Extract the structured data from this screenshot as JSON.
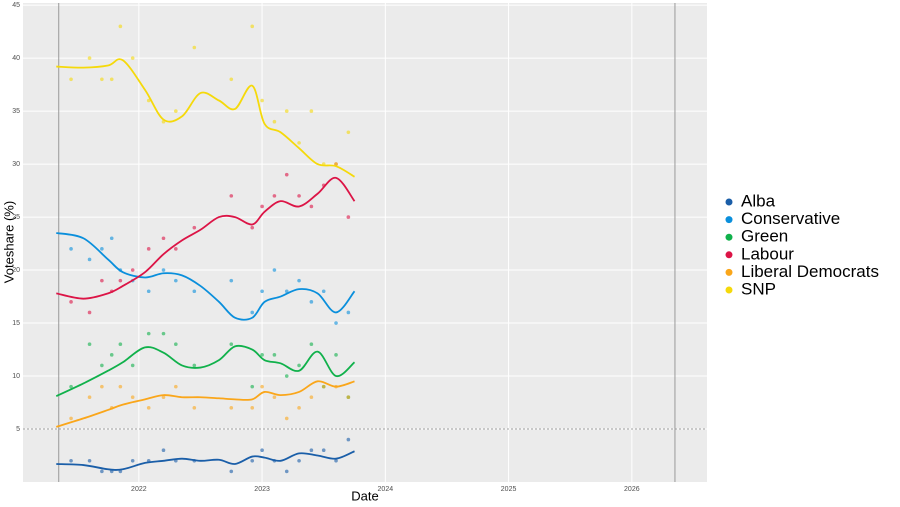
{
  "chart_data": {
    "type": "line",
    "x_label": "Date",
    "y_label": "Voteshare (%)",
    "xlim": [
      2021.06,
      2026.61
    ],
    "ylim": [
      0,
      45.2
    ],
    "xticks": [
      2022,
      2023,
      2024,
      2025,
      2026
    ],
    "yticks": [
      5,
      10,
      15,
      20,
      25,
      30,
      35,
      40,
      45
    ],
    "grid": true,
    "legend": "right",
    "reference_x": [
      2021.35,
      2026.35
    ],
    "reference_y": [
      5
    ],
    "trend_x": [
      2021.33,
      2021.55,
      2021.75,
      2021.87,
      2022.05,
      2022.2,
      2022.35,
      2022.5,
      2022.65,
      2022.78,
      2022.92,
      2023.02,
      2023.15,
      2023.3,
      2023.45,
      2023.6,
      2023.75
    ],
    "poll_x": [
      2021.45,
      2021.6,
      2021.7,
      2021.78,
      2021.85,
      2021.95,
      2022.08,
      2022.2,
      2022.3,
      2022.45,
      2022.75,
      2022.92,
      2023.0,
      2023.1,
      2023.2,
      2023.3,
      2023.4,
      2023.5,
      2023.6,
      2023.7
    ],
    "series": [
      {
        "name": "Alba",
        "color": "#1a5ea8",
        "trend": [
          1.7,
          1.6,
          1.2,
          1.2,
          1.8,
          2.0,
          2.2,
          2.0,
          2.1,
          1.7,
          2.4,
          2.3,
          2.0,
          2.7,
          2.5,
          2.2,
          2.9
        ],
        "polls": [
          2,
          2,
          1,
          1,
          1,
          2,
          2,
          3,
          2,
          2,
          1,
          2,
          3,
          2,
          1,
          2,
          3,
          3,
          2,
          4
        ]
      },
      {
        "name": "Conservative",
        "color": "#0a8fdc",
        "trend": [
          23.5,
          23.0,
          21.0,
          19.8,
          19.3,
          19.7,
          19.5,
          18.5,
          17.0,
          15.5,
          15.5,
          17.0,
          17.5,
          18.2,
          17.8,
          16.0,
          18.0
        ],
        "polls": [
          22,
          21,
          22,
          23,
          20,
          19,
          18,
          20,
          19,
          18,
          19,
          16,
          18,
          20,
          18,
          19,
          17,
          18,
          15,
          16
        ]
      },
      {
        "name": "Green",
        "color": "#10b14b",
        "trend": [
          8.1,
          9.3,
          10.5,
          11.3,
          12.7,
          12.2,
          11.0,
          10.8,
          11.5,
          12.8,
          12.5,
          11.5,
          11.2,
          10.5,
          12.3,
          10.0,
          11.3
        ],
        "polls": [
          9,
          13,
          11,
          12,
          13,
          11,
          14,
          14,
          13,
          11,
          13,
          9,
          12,
          12,
          10,
          11,
          13,
          9,
          12,
          8
        ]
      },
      {
        "name": "Labour",
        "color": "#dc1446",
        "trend": [
          17.8,
          17.3,
          17.8,
          18.5,
          19.8,
          21.5,
          22.8,
          23.8,
          25.0,
          25.0,
          24.3,
          25.5,
          26.5,
          26.0,
          27.2,
          28.7,
          26.5
        ],
        "polls": [
          17,
          16,
          19,
          18,
          19,
          20,
          22,
          23,
          22,
          24,
          27,
          24,
          26,
          27,
          29,
          27,
          26,
          28,
          30,
          25
        ]
      },
      {
        "name": "Liberal Democrats",
        "color": "#faa61a",
        "trend": [
          5.2,
          6.0,
          6.8,
          7.3,
          7.8,
          8.2,
          8.0,
          8.0,
          7.9,
          7.8,
          7.8,
          8.5,
          8.2,
          8.5,
          9.5,
          9.0,
          9.5
        ],
        "polls": [
          6,
          8,
          9,
          7,
          9,
          8,
          7,
          8,
          9,
          7,
          7,
          7,
          9,
          8,
          6,
          7,
          8,
          9,
          9,
          8
        ]
      },
      {
        "name": "SNP",
        "color": "#f5d90a",
        "trend": [
          39.2,
          39.1,
          39.3,
          39.8,
          37.0,
          34.2,
          34.5,
          36.7,
          36.0,
          35.2,
          37.4,
          33.8,
          33.0,
          31.5,
          30.0,
          29.8,
          28.8
        ],
        "polls": [
          38,
          40,
          38,
          38,
          43,
          40,
          36,
          34,
          35,
          41,
          38,
          43,
          36,
          34,
          35,
          32,
          35,
          30,
          30,
          33
        ]
      }
    ]
  }
}
